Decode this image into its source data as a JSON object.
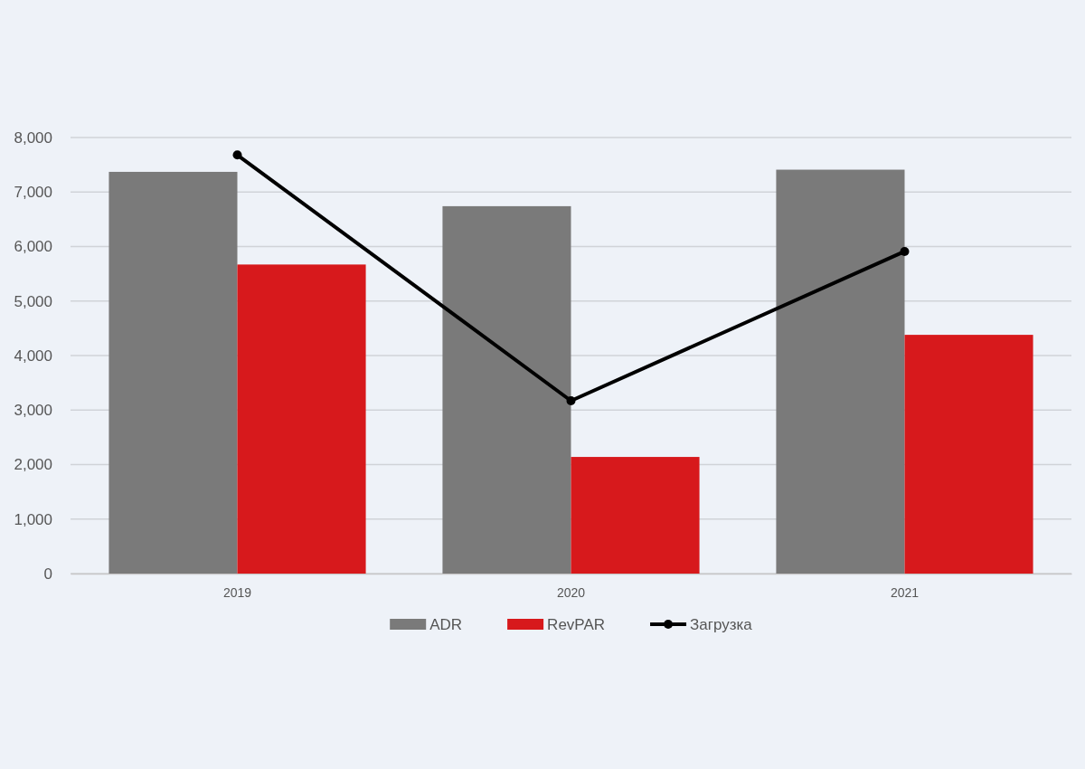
{
  "chart_data": {
    "type": "bar",
    "categories": [
      "2019",
      "2020",
      "2021"
    ],
    "series": [
      {
        "name": "ADR",
        "color": "#7a7a7a",
        "values": [
          7370,
          6740,
          7410
        ]
      },
      {
        "name": "RevPAR",
        "color": "#d7191c",
        "values": [
          5670,
          2140,
          4380
        ]
      },
      {
        "name": "Загрузка",
        "type": "line",
        "color": "#000000",
        "values": [
          7680,
          3170,
          5910
        ]
      }
    ],
    "ylim": [
      0,
      8000
    ],
    "yticks": [
      {
        "value": 0,
        "label": "0"
      },
      {
        "value": 1000,
        "label": "1,000"
      },
      {
        "value": 2000,
        "label": "2,000"
      },
      {
        "value": 3000,
        "label": "3,000"
      },
      {
        "value": 4000,
        "label": "4,000"
      },
      {
        "value": 5000,
        "label": "5,000"
      },
      {
        "value": 6000,
        "label": "6,000"
      },
      {
        "value": 7000,
        "label": "7,000"
      },
      {
        "value": 8000,
        "label": "8,000"
      }
    ],
    "grid": "y",
    "legend": "bottom",
    "marker": "circle",
    "line_style": "solid"
  }
}
